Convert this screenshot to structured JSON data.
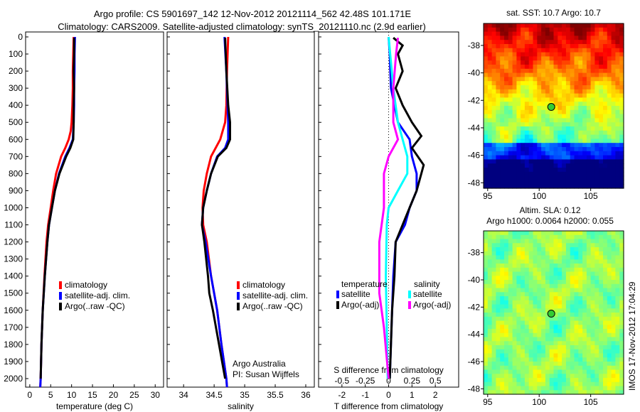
{
  "title_line1": "Argo profile: CS 5901697_142 12-Nov-2012 20121114_562 42.48S 101.171E",
  "title_line2": "Climatology: CARS2009. Satellite-adjusted climatology: synTS_20121110.nc (2.9d earlier)",
  "colors": {
    "climatology": "#ff0000",
    "satellite": "#0000ff",
    "argo": "#000000",
    "s_satellite": "#00ffff",
    "s_argo": "#ff00ff"
  },
  "chart_data": [
    {
      "type": "line",
      "xlabel": "temperature (deg C)",
      "ylabel": "",
      "xlim": [
        -1,
        32
      ],
      "ylim": [
        2050,
        -29
      ],
      "xticks": [
        0,
        5,
        10,
        15,
        20,
        25,
        30
      ],
      "yticks": [
        0,
        100,
        200,
        300,
        400,
        500,
        600,
        700,
        800,
        900,
        1000,
        1100,
        1200,
        1300,
        1400,
        1500,
        1600,
        1700,
        1800,
        1900,
        2000
      ],
      "legend": [
        "climatology",
        "satellite-adj. clim.",
        "Argo(..raw -QC)"
      ],
      "series": [
        {
          "name": "climatology",
          "depth": [
            0,
            100,
            200,
            300,
            400,
            500,
            550,
            600,
            650,
            700,
            800,
            900,
            1000,
            1100,
            1200,
            1400,
            1600,
            1800,
            2000,
            2050
          ],
          "values": [
            10.5,
            10.4,
            10.3,
            10.3,
            10.2,
            10.0,
            9.8,
            9.3,
            8.5,
            7.5,
            6.3,
            5.6,
            5.0,
            4.4,
            4.0,
            3.5,
            3.1,
            2.8,
            2.6,
            2.5
          ]
        },
        {
          "name": "satellite-adj. clim.",
          "depth": [
            0,
            100,
            200,
            300,
            400,
            500,
            600,
            650,
            700,
            800,
            900,
            1000,
            1100,
            1200,
            1400,
            1600,
            1800,
            2000,
            2050
          ],
          "values": [
            10.8,
            10.7,
            10.7,
            10.6,
            10.6,
            10.5,
            10.3,
            9.5,
            8.5,
            7.0,
            6.0,
            5.3,
            4.6,
            4.2,
            3.6,
            3.1,
            2.8,
            2.6,
            2.5
          ]
        },
        {
          "name": "Argo(..raw -QC)",
          "depth": [
            5,
            100,
            200,
            300,
            400,
            500,
            600,
            650,
            700,
            800,
            900,
            1000,
            1100,
            1200,
            1400,
            1600,
            1800,
            2000
          ],
          "values": [
            10.6,
            10.6,
            10.5,
            10.6,
            10.5,
            10.5,
            10.4,
            9.7,
            8.7,
            7.1,
            6.0,
            5.3,
            4.6,
            4.2,
            3.6,
            3.1,
            2.8,
            2.6
          ]
        }
      ]
    },
    {
      "type": "line",
      "xlabel": "salinity",
      "ylabel": "",
      "xlim": [
        33.73,
        36.14
      ],
      "ylim": [
        2050,
        -29
      ],
      "xticks": [
        34,
        34.5,
        35,
        35.5,
        36
      ],
      "legend": [
        "climatology",
        "satellite-adj. clim.",
        "Argo(..raw -QC)"
      ],
      "annotation": [
        "Argo Australia",
        "PI: Susan Wijffels"
      ],
      "series": [
        {
          "name": "climatology",
          "depth": [
            0,
            200,
            400,
            500,
            600,
            700,
            800,
            900,
            1000,
            1100,
            1200,
            1400,
            1600,
            1800,
            2000,
            2050
          ],
          "values": [
            34.73,
            34.71,
            34.7,
            34.68,
            34.6,
            34.45,
            34.38,
            34.33,
            34.31,
            34.32,
            34.38,
            34.45,
            34.55,
            34.62,
            34.7,
            34.71
          ]
        },
        {
          "name": "satellite-adj. clim.",
          "depth": [
            0,
            200,
            400,
            500,
            600,
            650,
            700,
            800,
            900,
            1000,
            1100,
            1200,
            1400,
            1600,
            1800,
            2000,
            2050
          ],
          "values": [
            34.67,
            34.7,
            34.72,
            34.73,
            34.73,
            34.68,
            34.55,
            34.45,
            34.38,
            34.32,
            34.3,
            34.36,
            34.45,
            34.55,
            34.62,
            34.7,
            34.71
          ]
        },
        {
          "name": "Argo(..raw -QC)",
          "depth": [
            5,
            200,
            400,
            500,
            600,
            650,
            700,
            800,
            900,
            1000,
            1100,
            1200,
            1400,
            1500,
            1600,
            1800,
            2000
          ],
          "values": [
            34.68,
            34.7,
            34.73,
            34.76,
            34.76,
            34.7,
            34.56,
            34.45,
            34.38,
            34.32,
            34.3,
            34.34,
            34.4,
            34.42,
            34.48,
            34.58,
            34.68
          ]
        }
      ]
    },
    {
      "type": "line",
      "xlabel": "T difference from climatology",
      "x2label": "S difference from climatology",
      "xlim": [
        -3,
        3
      ],
      "x2lim": [
        -0.75,
        0.75
      ],
      "ylim": [
        2050,
        -29
      ],
      "xticks": [
        -2,
        -1,
        0,
        1,
        2
      ],
      "x2ticks": [
        -0.5,
        -0.25,
        0,
        0.25,
        0.5
      ],
      "legend_headers": [
        "temperature",
        "salinity"
      ],
      "legend": [
        "satellite",
        "Argo(-adj)",
        "satellite",
        "Argo(-adj)"
      ],
      "series": [
        {
          "name": "temperature satellite",
          "axis": "T",
          "depth": [
            0,
            100,
            300,
            500,
            600,
            700,
            800,
            900,
            1000,
            1100,
            1200,
            1400,
            1600,
            2000
          ],
          "values": [
            0.0,
            0.05,
            0.1,
            0.4,
            0.9,
            1.0,
            1.2,
            1.2,
            0.9,
            0.7,
            0.3,
            0.2,
            0.15,
            0.05
          ]
        },
        {
          "name": "temperature Argo(-adj)",
          "axis": "T",
          "depth": [
            5,
            50,
            100,
            200,
            300,
            400,
            500,
            580,
            650,
            750,
            800,
            900,
            1000,
            1100,
            1200,
            1400,
            1600,
            2000
          ],
          "values": [
            0.2,
            0.6,
            0.4,
            0.6,
            0.3,
            0.6,
            1.0,
            1.4,
            1.0,
            1.5,
            1.4,
            1.2,
            0.9,
            0.6,
            0.3,
            0.25,
            0.15,
            0.05
          ]
        },
        {
          "name": "salinity satellite",
          "axis": "S",
          "depth": [
            0,
            300,
            500,
            600,
            700,
            800,
            900,
            1000,
            1100,
            1400,
            2000
          ],
          "values": [
            0.0,
            0.05,
            0.1,
            0.15,
            0.2,
            0.2,
            0.1,
            0.0,
            -0.02,
            -0.03,
            -0.01
          ]
        },
        {
          "name": "salinity Argo(-adj)",
          "axis": "S",
          "depth": [
            5,
            100,
            300,
            500,
            600,
            700,
            800,
            1000,
            1200,
            1500,
            1700,
            2000
          ],
          "values": [
            0.1,
            0.08,
            0.05,
            0.05,
            0.1,
            0.0,
            -0.05,
            -0.05,
            -0.1,
            -0.1,
            -0.05,
            0.0
          ]
        }
      ]
    },
    {
      "type": "heatmap",
      "title": "sat. SST: 10.7  Argo: 10.7",
      "xticks": [
        95,
        100,
        105
      ],
      "yticks": [
        -38,
        -40,
        -42,
        -44,
        -46,
        -48
      ],
      "xlim": [
        94.6,
        108.2
      ],
      "ylim": [
        -48.4,
        -36.4
      ],
      "marker": {
        "lon": 101.171,
        "lat": -42.48
      }
    },
    {
      "type": "heatmap",
      "title": "Altim. SLA: 0.12",
      "subtitle": "Argo h1000: 0.0064 h2000: 0.055",
      "xticks": [
        95,
        100,
        105
      ],
      "yticks": [
        -38,
        -40,
        -42,
        -44,
        -46,
        -48
      ],
      "xlim": [
        94.6,
        108.2
      ],
      "ylim": [
        -48.4,
        -36.4
      ],
      "marker": {
        "lon": 101.171,
        "lat": -42.48
      }
    }
  ],
  "watermark": "IMOS 17-Nov-2012 17:04:29"
}
